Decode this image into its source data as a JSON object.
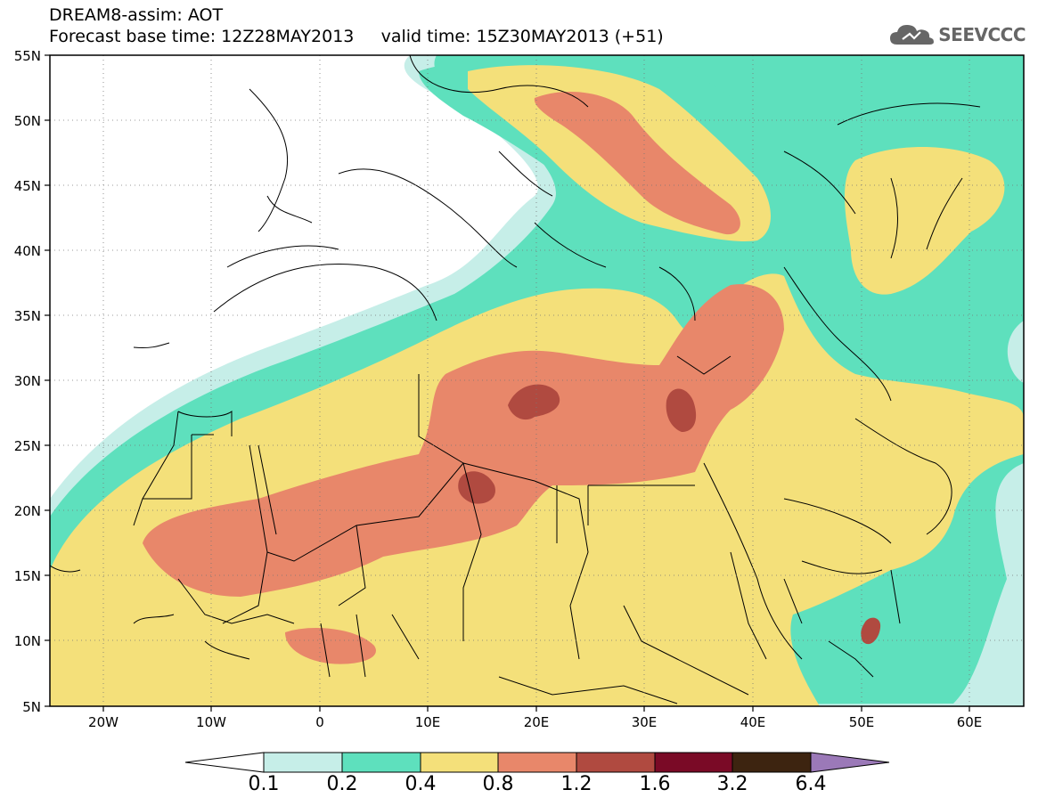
{
  "header": {
    "title_line1": "DREAM8-assim: AOT",
    "title_line2": "Forecast base time: 12Z28MAY2013     valid time: 15Z30MAY2013 (+51)",
    "brand_text": "SEEVCCC",
    "brand_icon": "cloud-icon"
  },
  "map": {
    "projection": "lat-lon",
    "lon_range": [
      -25,
      65
    ],
    "lat_range": [
      5,
      55
    ],
    "lat_labels": [
      "55N",
      "50N",
      "45N",
      "40N",
      "35N",
      "30N",
      "25N",
      "20N",
      "15N",
      "10N",
      "5N"
    ],
    "lon_labels": [
      "20W",
      "10W",
      "0",
      "10E",
      "20E",
      "30E",
      "40E",
      "50E",
      "60E"
    ],
    "grid": "dotted",
    "field": "Aerosol Optical Thickness (AOT)"
  },
  "legend": {
    "levels": [
      "0.1",
      "0.2",
      "0.4",
      "0.8",
      "1.2",
      "1.6",
      "3.2",
      "6.4"
    ],
    "colors": [
      "#c6eee8",
      "#5ee0bd",
      "#f4e07a",
      "#e8876a",
      "#b04a40",
      "#7a0a26",
      "#3d2410",
      "#9b79b8"
    ],
    "extend_low_color": "#ffffff",
    "extend_high_color": "#9b79b8"
  },
  "colors": {
    "c01": "#c6eee8",
    "c02": "#5ee0bd",
    "c04": "#f4e07a",
    "c08": "#e8876a",
    "c12": "#b04a40"
  }
}
